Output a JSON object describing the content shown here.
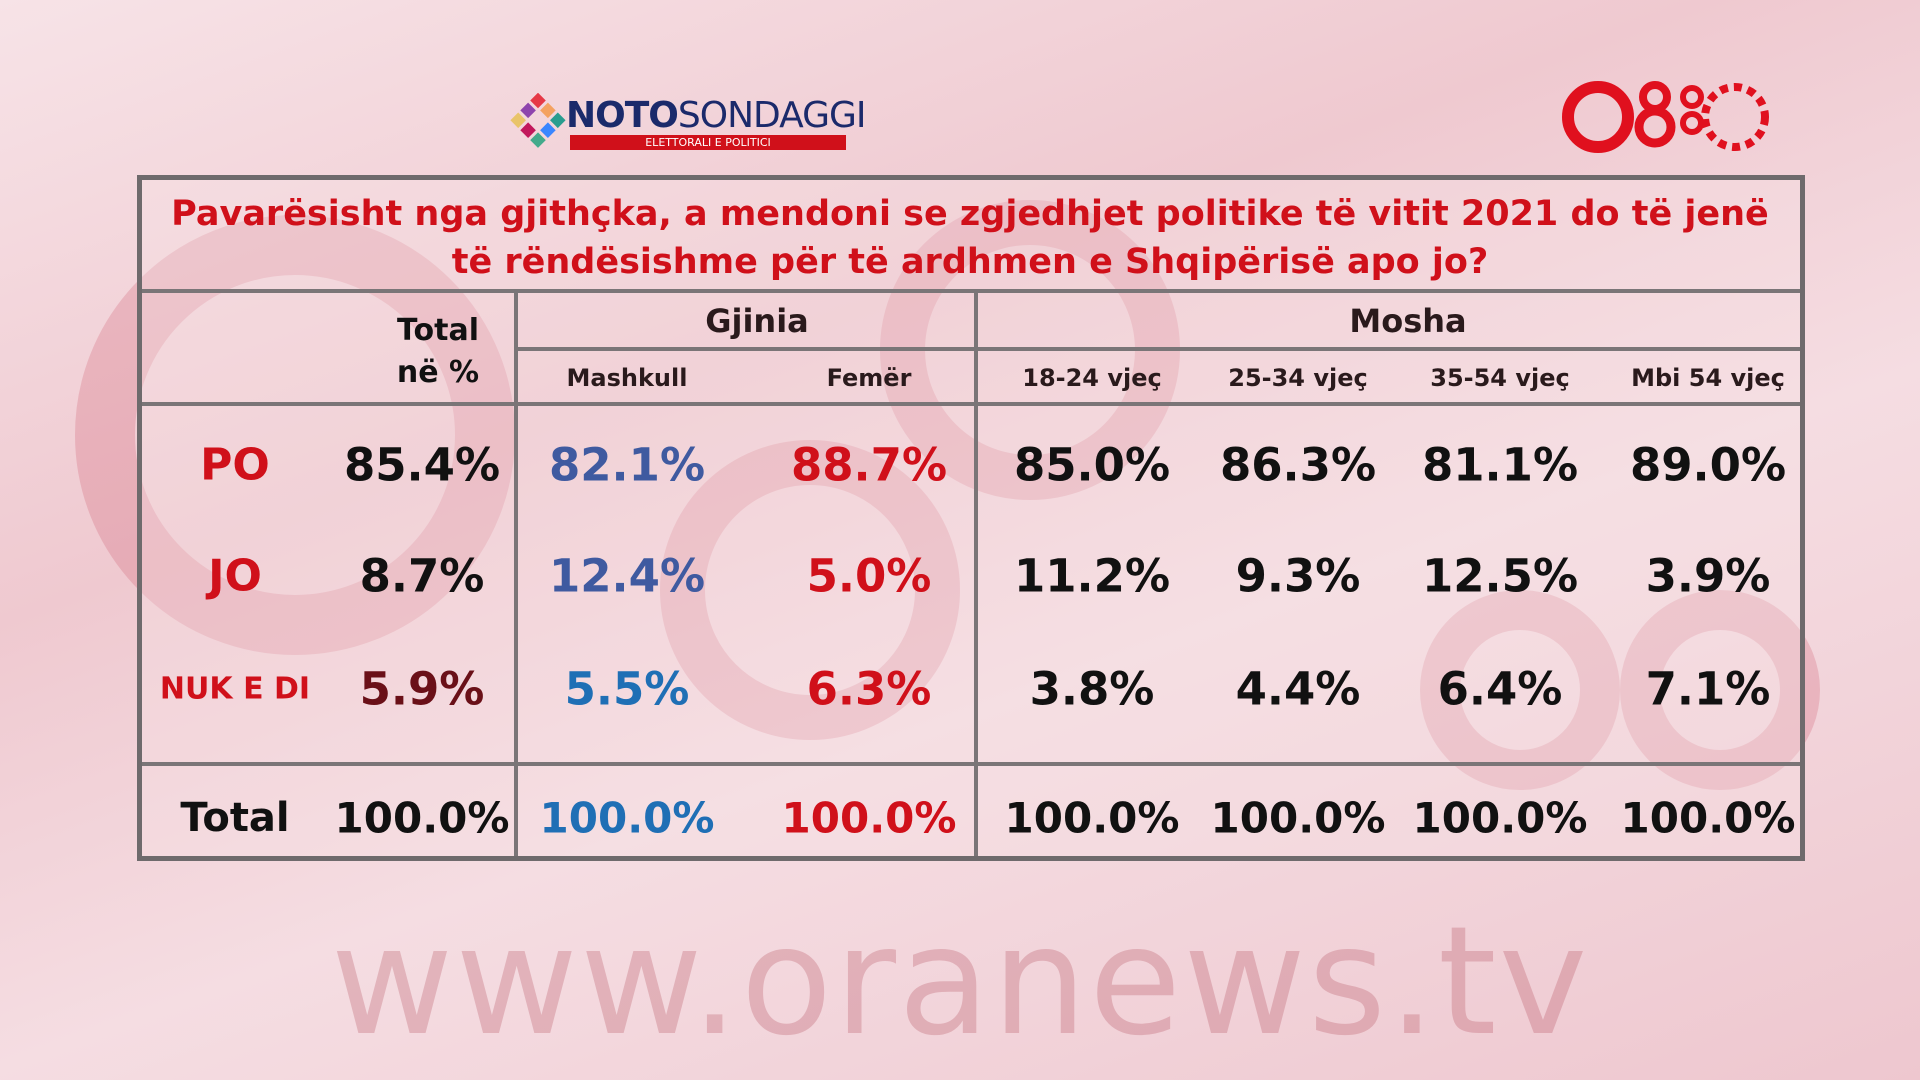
{
  "logo": {
    "brand_bold": "NOTO",
    "brand_light": "SONDAGGI",
    "tagline": "ELETTORALI E POLITICI"
  },
  "question": "Pavarësisht nga gjithçka, a mendoni se zgjedhjet politike të vitit 2021 do të jenë të rëndësishme për të ardhmen e Shqipërisë apo jo?",
  "table": {
    "total_header": [
      "Total",
      "në %"
    ],
    "groups": [
      "Gjinia",
      "Mosha"
    ],
    "columns": [
      "Mashkull",
      "Femër",
      "18-24 vjeç",
      "25-34 vjeç",
      "35-54 vjeç",
      "Mbi 54 vjeç"
    ],
    "rows": [
      [
        "PO",
        "85.4%",
        "82.1%",
        "88.7%",
        "85.0%",
        "86.3%",
        "81.1%",
        "89.0%"
      ],
      [
        "JO",
        "8.7%",
        "12.4%",
        "5.0%",
        "11.2%",
        "9.3%",
        "12.5%",
        "3.9%"
      ],
      [
        "NUK E DI",
        "5.9%",
        "5.5%",
        "6.3%",
        "3.8%",
        "4.4%",
        "6.4%",
        "7.1%"
      ],
      [
        "Total",
        "100.0%",
        "100.0%",
        "100.0%",
        "100.0%",
        "100.0%",
        "100.0%",
        "100.0%"
      ]
    ]
  },
  "watermark": "www.oranews.tv"
}
